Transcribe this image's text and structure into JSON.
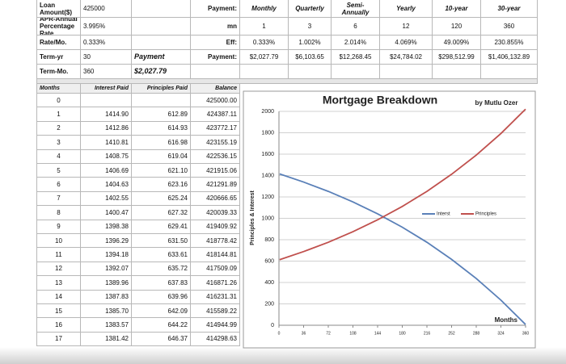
{
  "summary_rows": [
    [
      "Loan Amount($)",
      "425000",
      null,
      "Payment:",
      "Monthly",
      "Quarterly",
      "Semi-Annually",
      "Yearly",
      "10-year",
      "30-year"
    ],
    [
      "APR-Annual Percentage Rate",
      "3.995%",
      null,
      "mn",
      "1",
      "3",
      "6",
      "12",
      "120",
      "360"
    ],
    [
      "Rate/Mo.",
      "0.333%",
      null,
      "Eff:",
      "0.333%",
      "1.002%",
      "2.014%",
      "4.069%",
      "49.009%",
      "230.855%"
    ],
    [
      "Term-yr",
      "30",
      "Payment",
      "Payment:",
      "$2,027.79",
      "$6,103.65",
      "$12,268.45",
      "$24,784.02",
      "$298,512.99",
      "$1,406,132.89"
    ],
    [
      "Term-Mo.",
      "360",
      "$2,027.79",
      null,
      null,
      null,
      null,
      null,
      null,
      null
    ]
  ],
  "table": {
    "headers": [
      "Months",
      "Interest Paid",
      "Principles Paid",
      "Balance"
    ],
    "rows": [
      [
        "0",
        null,
        null,
        "425000.00"
      ],
      [
        "1",
        "1414.90",
        "612.89",
        "424387.11"
      ],
      [
        "2",
        "1412.86",
        "614.93",
        "423772.17"
      ],
      [
        "3",
        "1410.81",
        "616.98",
        "423155.19"
      ],
      [
        "4",
        "1408.75",
        "619.04",
        "422536.15"
      ],
      [
        "5",
        "1406.69",
        "621.10",
        "421915.06"
      ],
      [
        "6",
        "1404.63",
        "623.16",
        "421291.89"
      ],
      [
        "7",
        "1402.55",
        "625.24",
        "420666.65"
      ],
      [
        "8",
        "1400.47",
        "627.32",
        "420039.33"
      ],
      [
        "9",
        "1398.38",
        "629.41",
        "419409.92"
      ],
      [
        "10",
        "1396.29",
        "631.50",
        "418778.42"
      ],
      [
        "11",
        "1394.18",
        "633.61",
        "418144.81"
      ],
      [
        "12",
        "1392.07",
        "635.72",
        "417509.09"
      ],
      [
        "13",
        "1389.96",
        "637.83",
        "416871.26"
      ],
      [
        "14",
        "1387.83",
        "639.96",
        "416231.31"
      ],
      [
        "15",
        "1385.70",
        "642.09",
        "415589.22"
      ],
      [
        "16",
        "1383.57",
        "644.22",
        "414944.99"
      ],
      [
        "17",
        "1381.42",
        "646.37",
        "414298.63"
      ]
    ]
  },
  "chart_data": {
    "type": "line",
    "title": "Mortgage Breakdown",
    "subtitle": "by Mutlu Ozer",
    "x_label": "Months",
    "y_label": "Principles & Interest",
    "x": [
      1,
      36,
      72,
      108,
      144,
      180,
      216,
      252,
      288,
      324,
      360
    ],
    "series": [
      {
        "name": "Interst",
        "color": "#5a80b8",
        "values": [
          1415,
          1339,
          1252,
          1153,
          1042,
          917,
          776,
          616,
          437,
          235,
          7
        ]
      },
      {
        "name": "Principles",
        "color": "#c0504d",
        "values": [
          613,
          689,
          776,
          875,
          986,
          1111,
          1252,
          1412,
          1591,
          1793,
          2021
        ]
      }
    ],
    "xlim": [
      0,
      360
    ],
    "xticks": [
      0,
      36,
      72,
      108,
      144,
      180,
      216,
      252,
      288,
      324,
      360
    ],
    "ylim": [
      0,
      2000
    ],
    "yticks": [
      0,
      200,
      400,
      600,
      800,
      1000,
      1200,
      1400,
      1600,
      1800,
      2000
    ],
    "grid": true,
    "legend": "right"
  }
}
